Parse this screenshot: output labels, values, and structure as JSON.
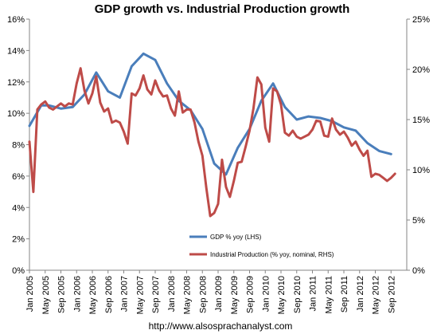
{
  "chart_data": {
    "type": "line",
    "title": "GDP growth vs. Industrial Production growth",
    "left_axis": {
      "min": 0,
      "max": 16,
      "step": 2,
      "tick_labels": [
        "0%",
        "2%",
        "4%",
        "6%",
        "8%",
        "10%",
        "12%",
        "14%",
        "16%"
      ]
    },
    "right_axis": {
      "min": 0,
      "max": 25,
      "step": 5,
      "tick_labels": [
        "0%",
        "5%",
        "10%",
        "15%",
        "20%",
        "25%"
      ]
    },
    "x_range": [
      "2005-01",
      "2012-12"
    ],
    "x_tick_labels": [
      "Jan 2005",
      "May 2005",
      "Sep 2005",
      "Jan 2006",
      "May 2006",
      "Sep 2006",
      "Jan 2007",
      "May 2007",
      "Sep 2007",
      "Jan 2008",
      "May 2008",
      "Sep 2008",
      "Jan 2009",
      "May 2009",
      "Sep 2009",
      "Jan 2010",
      "May 2010",
      "Sep 2010",
      "Jan 2011",
      "May 2011",
      "Sep 2011",
      "Jan 2012",
      "May 2012",
      "Sep 2012"
    ],
    "grid": false,
    "legend_position": "bottom-center",
    "series": [
      {
        "name": "GDP % yoy (LHS)",
        "axis": "left",
        "color": "#4a7ebb",
        "points": [
          [
            "2005-01",
            9.2
          ],
          [
            "2005-04",
            10.5
          ],
          [
            "2005-06",
            10.5
          ],
          [
            "2005-09",
            10.3
          ],
          [
            "2005-12",
            10.4
          ],
          [
            "2006-03",
            11.2
          ],
          [
            "2006-06",
            12.6
          ],
          [
            "2006-09",
            11.4
          ],
          [
            "2006-12",
            11.0
          ],
          [
            "2007-03",
            13.0
          ],
          [
            "2007-06",
            13.8
          ],
          [
            "2007-09",
            13.4
          ],
          [
            "2007-12",
            11.9
          ],
          [
            "2008-03",
            10.8
          ],
          [
            "2008-06",
            10.2
          ],
          [
            "2008-09",
            9.0
          ],
          [
            "2008-12",
            6.8
          ],
          [
            "2009-03",
            6.1
          ],
          [
            "2009-06",
            7.8
          ],
          [
            "2009-09",
            9.0
          ],
          [
            "2009-12",
            10.8
          ],
          [
            "2010-03",
            11.9
          ],
          [
            "2010-06",
            10.4
          ],
          [
            "2010-09",
            9.6
          ],
          [
            "2010-12",
            9.8
          ],
          [
            "2011-03",
            9.7
          ],
          [
            "2011-06",
            9.5
          ],
          [
            "2011-09",
            9.1
          ],
          [
            "2011-12",
            8.9
          ],
          [
            "2012-03",
            8.1
          ],
          [
            "2012-06",
            7.6
          ],
          [
            "2012-09",
            7.4
          ]
        ]
      },
      {
        "name": "Industrial Production (% yoy, nominal, RHS)",
        "axis": "right",
        "color": "#be4b48",
        "points": [
          [
            "2005-01",
            12.8
          ],
          [
            "2005-02",
            7.8
          ],
          [
            "2005-03",
            16.0
          ],
          [
            "2005-04",
            16.5
          ],
          [
            "2005-05",
            16.8
          ],
          [
            "2005-06",
            16.2
          ],
          [
            "2005-07",
            16.0
          ],
          [
            "2005-08",
            16.3
          ],
          [
            "2005-09",
            16.6
          ],
          [
            "2005-10",
            16.3
          ],
          [
            "2005-11",
            16.6
          ],
          [
            "2005-12",
            16.5
          ],
          [
            "2006-01",
            18.6
          ],
          [
            "2006-02",
            20.1
          ],
          [
            "2006-03",
            17.9
          ],
          [
            "2006-04",
            16.6
          ],
          [
            "2006-05",
            17.6
          ],
          [
            "2006-06",
            19.3
          ],
          [
            "2006-07",
            16.7
          ],
          [
            "2006-08",
            15.8
          ],
          [
            "2006-09",
            16.1
          ],
          [
            "2006-10",
            14.7
          ],
          [
            "2006-11",
            14.9
          ],
          [
            "2006-12",
            14.7
          ],
          [
            "2007-01",
            13.8
          ],
          [
            "2007-02",
            12.6
          ],
          [
            "2007-03",
            17.6
          ],
          [
            "2007-04",
            17.4
          ],
          [
            "2007-05",
            18.1
          ],
          [
            "2007-06",
            19.4
          ],
          [
            "2007-07",
            18.0
          ],
          [
            "2007-08",
            17.5
          ],
          [
            "2007-09",
            18.9
          ],
          [
            "2007-10",
            17.9
          ],
          [
            "2007-11",
            17.3
          ],
          [
            "2007-12",
            17.4
          ],
          [
            "2008-01",
            16.1
          ],
          [
            "2008-02",
            15.4
          ],
          [
            "2008-03",
            17.8
          ],
          [
            "2008-04",
            15.7
          ],
          [
            "2008-05",
            16.0
          ],
          [
            "2008-06",
            16.0
          ],
          [
            "2008-07",
            14.7
          ],
          [
            "2008-08",
            12.8
          ],
          [
            "2008-09",
            11.4
          ],
          [
            "2008-10",
            8.2
          ],
          [
            "2008-11",
            5.4
          ],
          [
            "2008-12",
            5.7
          ],
          [
            "2009-01",
            6.6
          ],
          [
            "2009-02",
            11.0
          ],
          [
            "2009-03",
            8.3
          ],
          [
            "2009-04",
            7.3
          ],
          [
            "2009-05",
            8.9
          ],
          [
            "2009-06",
            10.7
          ],
          [
            "2009-07",
            10.8
          ],
          [
            "2009-08",
            12.3
          ],
          [
            "2009-09",
            13.9
          ],
          [
            "2009-10",
            16.1
          ],
          [
            "2009-11",
            19.2
          ],
          [
            "2009-12",
            18.5
          ],
          [
            "2010-01",
            14.2
          ],
          [
            "2010-02",
            12.8
          ],
          [
            "2010-03",
            18.1
          ],
          [
            "2010-04",
            17.8
          ],
          [
            "2010-05",
            16.5
          ],
          [
            "2010-06",
            13.7
          ],
          [
            "2010-07",
            13.4
          ],
          [
            "2010-08",
            13.9
          ],
          [
            "2010-09",
            13.3
          ],
          [
            "2010-10",
            13.1
          ],
          [
            "2010-11",
            13.3
          ],
          [
            "2010-12",
            13.5
          ],
          [
            "2011-01",
            14.0
          ],
          [
            "2011-02",
            14.9
          ],
          [
            "2011-03",
            14.8
          ],
          [
            "2011-04",
            13.4
          ],
          [
            "2011-05",
            13.3
          ],
          [
            "2011-06",
            15.1
          ],
          [
            "2011-07",
            14.0
          ],
          [
            "2011-08",
            13.5
          ],
          [
            "2011-09",
            13.8
          ],
          [
            "2011-10",
            13.2
          ],
          [
            "2011-11",
            12.4
          ],
          [
            "2011-12",
            12.8
          ],
          [
            "2012-01",
            12.0
          ],
          [
            "2012-02",
            11.4
          ],
          [
            "2012-03",
            11.9
          ],
          [
            "2012-04",
            9.3
          ],
          [
            "2012-05",
            9.6
          ],
          [
            "2012-06",
            9.5
          ],
          [
            "2012-07",
            9.2
          ],
          [
            "2012-08",
            8.9
          ],
          [
            "2012-09",
            9.2
          ],
          [
            "2012-10",
            9.6
          ]
        ]
      }
    ]
  },
  "footer": {
    "url": "http://www.alsosprachanalyst.com"
  }
}
